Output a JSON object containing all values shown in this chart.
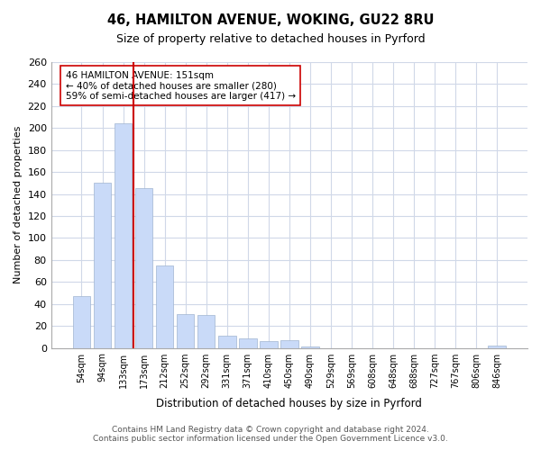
{
  "title": "46, HAMILTON AVENUE, WOKING, GU22 8RU",
  "subtitle": "Size of property relative to detached houses in Pyrford",
  "xlabel": "Distribution of detached houses by size in Pyrford",
  "ylabel": "Number of detached properties",
  "bar_labels": [
    "54sqm",
    "94sqm",
    "133sqm",
    "173sqm",
    "212sqm",
    "252sqm",
    "292sqm",
    "331sqm",
    "371sqm",
    "410sqm",
    "450sqm",
    "490sqm",
    "529sqm",
    "569sqm",
    "608sqm",
    "648sqm",
    "688sqm",
    "727sqm",
    "767sqm",
    "806sqm",
    "846sqm"
  ],
  "bar_values": [
    47,
    150,
    204,
    145,
    75,
    31,
    30,
    11,
    9,
    6,
    7,
    1,
    0,
    0,
    0,
    0,
    0,
    0,
    0,
    0,
    2
  ],
  "bar_color": "#c9daf8",
  "bar_edge_color": "#a0b4d0",
  "vline_x_index": 2.5,
  "vline_color": "#cc0000",
  "annotation_title": "46 HAMILTON AVENUE: 151sqm",
  "annotation_line1": "← 40% of detached houses are smaller (280)",
  "annotation_line2": "59% of semi-detached houses are larger (417) →",
  "annotation_box_color": "#ffffff",
  "annotation_box_edge": "#cc0000",
  "ylim": [
    0,
    260
  ],
  "yticks": [
    0,
    20,
    40,
    60,
    80,
    100,
    120,
    140,
    160,
    180,
    200,
    220,
    240,
    260
  ],
  "footer_line1": "Contains HM Land Registry data © Crown copyright and database right 2024.",
  "footer_line2": "Contains public sector information licensed under the Open Government Licence v3.0.",
  "bg_color": "#ffffff",
  "grid_color": "#d0d8e8"
}
